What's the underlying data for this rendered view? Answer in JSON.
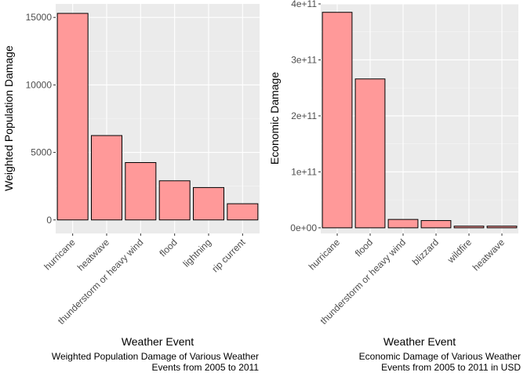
{
  "chart_data": [
    {
      "type": "bar",
      "categories": [
        "hurricane",
        "heatwave",
        "thunderstorm or heavy wind",
        "flood",
        "lightning",
        "rip current"
      ],
      "values": [
        15300,
        6250,
        4250,
        2900,
        2400,
        1200
      ],
      "xlabel": "Weather Event",
      "ylabel": "Weighted Population Damage",
      "caption": [
        "Weighted Population Damage of Various Weather",
        "Events from 2005 to 2011"
      ],
      "ylim": [
        -1000,
        16000
      ],
      "yticks": [
        0,
        5000,
        10000,
        15000
      ],
      "ytick_labels": [
        "0",
        "5000",
        "10000",
        "15000"
      ],
      "grid": true,
      "fill_color": "#ff9999",
      "edge_color": "#000000",
      "panel_color": "#ebebeb"
    },
    {
      "type": "bar",
      "categories": [
        "hurricane",
        "flood",
        "thunderstorm or heavy wind",
        "blizzard",
        "wildfire",
        "heatwave"
      ],
      "values": [
        385000000000,
        266000000000,
        15000000000,
        13000000000,
        3000000000,
        3000000000
      ],
      "xlabel": "Weather Event",
      "ylabel": "Economic Damage",
      "caption": [
        "Economic Damage of Various Weather",
        "Events from 2005 to 2011 in USD"
      ],
      "ylim": [
        -10000000000,
        400000000000
      ],
      "yticks": [
        0,
        100000000000,
        200000000000,
        300000000000,
        400000000000
      ],
      "ytick_labels": [
        "0e+00",
        "1e+11",
        "2e+11",
        "3e+11",
        "4e+11"
      ],
      "grid": true,
      "fill_color": "#ff9999",
      "edge_color": "#000000",
      "panel_color": "#ebebeb"
    }
  ]
}
